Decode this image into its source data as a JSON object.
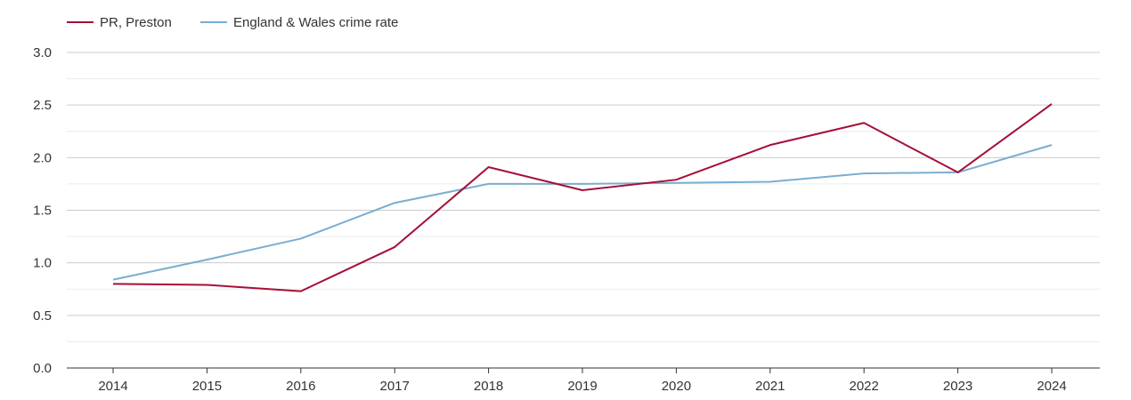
{
  "chart_data": {
    "type": "line",
    "title": "",
    "xlabel": "",
    "ylabel": "",
    "categories": [
      "2014",
      "2015",
      "2016",
      "2017",
      "2018",
      "2019",
      "2020",
      "2021",
      "2022",
      "2023",
      "2024"
    ],
    "ylim": [
      0,
      3.0
    ],
    "yticks": [
      "0.0",
      "0.5",
      "1.0",
      "1.5",
      "2.0",
      "2.5",
      "3.0"
    ],
    "ytick_values": [
      0,
      0.5,
      1.0,
      1.5,
      2.0,
      2.5,
      3.0
    ],
    "grid": true,
    "legend_position": "top-left",
    "series": [
      {
        "name": "PR, Preston",
        "color": "#a50f37",
        "values": [
          0.8,
          0.79,
          0.73,
          1.15,
          1.91,
          1.69,
          1.79,
          2.12,
          2.33,
          1.86,
          2.51
        ]
      },
      {
        "name": "England & Wales crime rate",
        "color": "#7aadd0",
        "values": [
          0.84,
          1.03,
          1.23,
          1.57,
          1.75,
          1.75,
          1.76,
          1.77,
          1.85,
          1.86,
          2.12
        ]
      }
    ]
  }
}
